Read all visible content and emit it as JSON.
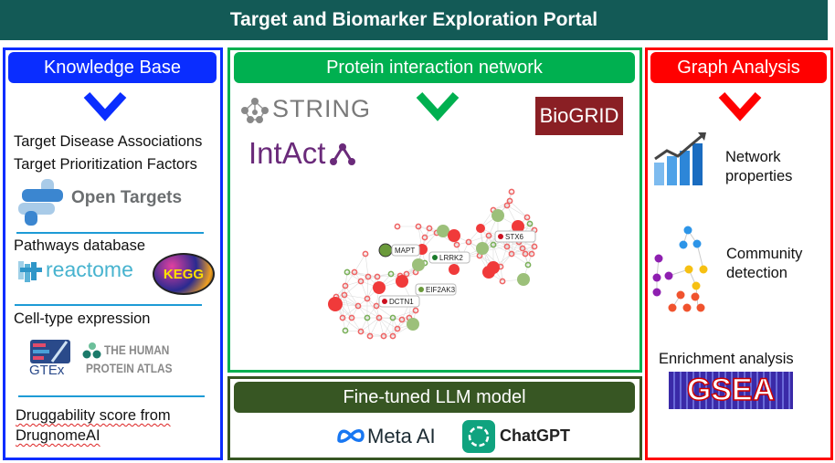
{
  "title": "Target and Biomarker Exploration Portal",
  "colors": {
    "title_bg": "#135a56",
    "knowledge": "#0a2dff",
    "protein": "#00b050",
    "llm": "#375623",
    "graph": "#ff0000"
  },
  "knowledge_base": {
    "header": "Knowledge Base",
    "line1": "Target Disease Associations",
    "line2": "Target Prioritization Factors",
    "open_targets": "Open Targets",
    "pathways": "Pathways database",
    "reactome": "reactome",
    "kegg": "KEGG",
    "cell_type": "Cell-type expression",
    "gtex": "GTEx",
    "hpa_line1": "THE HUMAN",
    "hpa_line2": "PROTEIN ATLAS",
    "drug_line1": "Druggability score from",
    "drug_line2": "DrugnomeAI"
  },
  "protein_network": {
    "header": "Protein interaction network",
    "string": "STRING",
    "intact": "IntAct",
    "biogrid": "BioGRID",
    "node_labels": [
      "MAPT",
      "LRRK2",
      "STX6",
      "EIF2AK3",
      "DCTN1"
    ]
  },
  "llm": {
    "header": "Fine-tuned LLM model",
    "meta": "Meta AI",
    "chatgpt": "ChatGPT"
  },
  "graph_analysis": {
    "header": "Graph Analysis",
    "network_properties": "Network properties",
    "community_detection": "Community detection",
    "enrichment": "Enrichment analysis",
    "gsea": "GSEA"
  }
}
